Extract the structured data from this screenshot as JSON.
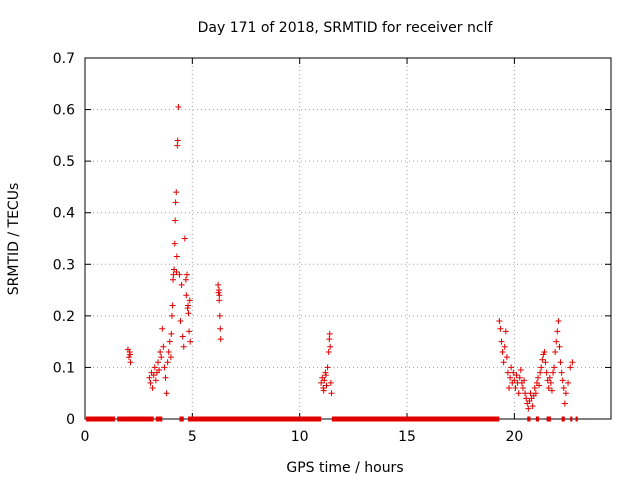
{
  "chart_data": {
    "type": "scatter",
    "title": "Day 171 of 2018, SRMTID for receiver nclf",
    "xlabel": "GPS time / hours",
    "ylabel": "SRMTID / TECUs",
    "xlim": [
      0,
      24.5
    ],
    "ylim": [
      0,
      0.7
    ],
    "x_ticks": [
      0,
      5,
      10,
      15,
      20
    ],
    "x_tick_labels": [
      "0",
      "5",
      "10",
      "15",
      "20"
    ],
    "y_ticks": [
      0,
      0.1,
      0.2,
      0.3,
      0.4,
      0.5,
      0.6,
      0.7
    ],
    "y_tick_labels": [
      "0",
      "0.1",
      "0.2",
      "0.3",
      "0.4",
      "0.5",
      "0.6",
      "0.7"
    ],
    "grid": true,
    "marker": "+",
    "color": "#e00000",
    "zero_segments": [
      [
        0.05,
        1.4
      ],
      [
        1.5,
        3.2
      ],
      [
        3.3,
        3.6
      ],
      [
        4.4,
        4.6
      ],
      [
        4.8,
        11.0
      ],
      [
        11.5,
        19.3
      ],
      [
        20.6,
        20.75
      ],
      [
        21.0,
        21.15
      ],
      [
        21.5,
        21.7
      ],
      [
        22.2,
        22.35
      ],
      [
        22.6,
        22.7
      ],
      [
        22.85,
        22.95
      ]
    ],
    "points": [
      [
        2.0,
        0.135
      ],
      [
        2.05,
        0.12
      ],
      [
        2.1,
        0.125
      ],
      [
        2.12,
        0.11
      ],
      [
        2.08,
        0.13
      ],
      [
        3.0,
        0.08
      ],
      [
        3.05,
        0.07
      ],
      [
        3.1,
        0.09
      ],
      [
        3.15,
        0.06
      ],
      [
        3.2,
        0.085
      ],
      [
        3.25,
        0.1
      ],
      [
        3.3,
        0.075
      ],
      [
        3.35,
        0.09
      ],
      [
        3.4,
        0.11
      ],
      [
        3.45,
        0.095
      ],
      [
        3.5,
        0.13
      ],
      [
        3.55,
        0.12
      ],
      [
        3.6,
        0.175
      ],
      [
        3.65,
        0.14
      ],
      [
        3.7,
        0.1
      ],
      [
        3.75,
        0.08
      ],
      [
        3.8,
        0.05
      ],
      [
        3.85,
        0.11
      ],
      [
        3.9,
        0.13
      ],
      [
        3.95,
        0.15
      ],
      [
        4.0,
        0.12
      ],
      [
        4.02,
        0.165
      ],
      [
        4.05,
        0.2
      ],
      [
        4.08,
        0.22
      ],
      [
        4.1,
        0.27
      ],
      [
        4.12,
        0.28
      ],
      [
        4.15,
        0.29
      ],
      [
        4.18,
        0.34
      ],
      [
        4.2,
        0.385
      ],
      [
        4.22,
        0.42
      ],
      [
        4.25,
        0.44
      ],
      [
        4.3,
        0.53
      ],
      [
        4.32,
        0.54
      ],
      [
        4.35,
        0.605
      ],
      [
        4.28,
        0.315
      ],
      [
        4.26,
        0.285
      ],
      [
        4.4,
        0.28
      ],
      [
        4.45,
        0.19
      ],
      [
        4.5,
        0.26
      ],
      [
        4.55,
        0.16
      ],
      [
        4.6,
        0.14
      ],
      [
        4.65,
        0.35
      ],
      [
        4.7,
        0.27
      ],
      [
        4.72,
        0.24
      ],
      [
        4.75,
        0.28
      ],
      [
        4.78,
        0.215
      ],
      [
        4.8,
        0.22
      ],
      [
        4.82,
        0.205
      ],
      [
        4.85,
        0.17
      ],
      [
        4.9,
        0.15
      ],
      [
        4.88,
        0.23
      ],
      [
        6.2,
        0.26
      ],
      [
        6.22,
        0.245
      ],
      [
        6.25,
        0.23
      ],
      [
        6.28,
        0.2
      ],
      [
        6.3,
        0.175
      ],
      [
        6.32,
        0.155
      ],
      [
        6.26,
        0.24
      ],
      [
        6.24,
        0.25
      ],
      [
        11.0,
        0.07
      ],
      [
        11.05,
        0.08
      ],
      [
        11.1,
        0.06
      ],
      [
        11.15,
        0.075
      ],
      [
        11.2,
        0.09
      ],
      [
        11.25,
        0.065
      ],
      [
        11.3,
        0.1
      ],
      [
        11.35,
        0.13
      ],
      [
        11.38,
        0.155
      ],
      [
        11.4,
        0.165
      ],
      [
        11.42,
        0.14
      ],
      [
        11.45,
        0.07
      ],
      [
        11.48,
        0.05
      ],
      [
        11.12,
        0.055
      ],
      [
        11.22,
        0.085
      ],
      [
        19.3,
        0.19
      ],
      [
        19.35,
        0.175
      ],
      [
        19.4,
        0.15
      ],
      [
        19.45,
        0.13
      ],
      [
        19.5,
        0.11
      ],
      [
        19.55,
        0.14
      ],
      [
        19.6,
        0.17
      ],
      [
        19.65,
        0.12
      ],
      [
        19.7,
        0.09
      ],
      [
        19.75,
        0.06
      ],
      [
        19.8,
        0.08
      ],
      [
        19.85,
        0.1
      ],
      [
        19.9,
        0.07
      ],
      [
        19.95,
        0.09
      ],
      [
        20.0,
        0.075
      ],
      [
        20.05,
        0.06
      ],
      [
        20.1,
        0.085
      ],
      [
        20.15,
        0.07
      ],
      [
        20.2,
        0.05
      ],
      [
        20.25,
        0.08
      ],
      [
        20.3,
        0.095
      ],
      [
        20.35,
        0.07
      ],
      [
        20.4,
        0.06
      ],
      [
        20.45,
        0.075
      ],
      [
        20.5,
        0.05
      ],
      [
        20.55,
        0.04
      ],
      [
        20.6,
        0.03
      ],
      [
        20.65,
        0.02
      ],
      [
        20.7,
        0.035
      ],
      [
        20.75,
        0.05
      ],
      [
        20.8,
        0.04
      ],
      [
        20.85,
        0.025
      ],
      [
        20.9,
        0.045
      ],
      [
        20.95,
        0.06
      ],
      [
        21.0,
        0.05
      ],
      [
        21.05,
        0.07
      ],
      [
        21.1,
        0.08
      ],
      [
        21.15,
        0.065
      ],
      [
        21.2,
        0.09
      ],
      [
        21.25,
        0.1
      ],
      [
        21.3,
        0.115
      ],
      [
        21.35,
        0.125
      ],
      [
        21.4,
        0.13
      ],
      [
        21.45,
        0.11
      ],
      [
        21.5,
        0.09
      ],
      [
        21.55,
        0.075
      ],
      [
        21.6,
        0.06
      ],
      [
        21.65,
        0.08
      ],
      [
        21.7,
        0.07
      ],
      [
        21.75,
        0.055
      ],
      [
        21.8,
        0.09
      ],
      [
        21.85,
        0.1
      ],
      [
        21.9,
        0.13
      ],
      [
        21.95,
        0.15
      ],
      [
        22.0,
        0.17
      ],
      [
        22.05,
        0.19
      ],
      [
        22.1,
        0.14
      ],
      [
        22.15,
        0.11
      ],
      [
        22.2,
        0.09
      ],
      [
        22.25,
        0.075
      ],
      [
        22.3,
        0.06
      ],
      [
        22.35,
        0.03
      ],
      [
        22.4,
        0.05
      ],
      [
        22.5,
        0.07
      ],
      [
        22.6,
        0.1
      ],
      [
        22.7,
        0.11
      ]
    ]
  }
}
